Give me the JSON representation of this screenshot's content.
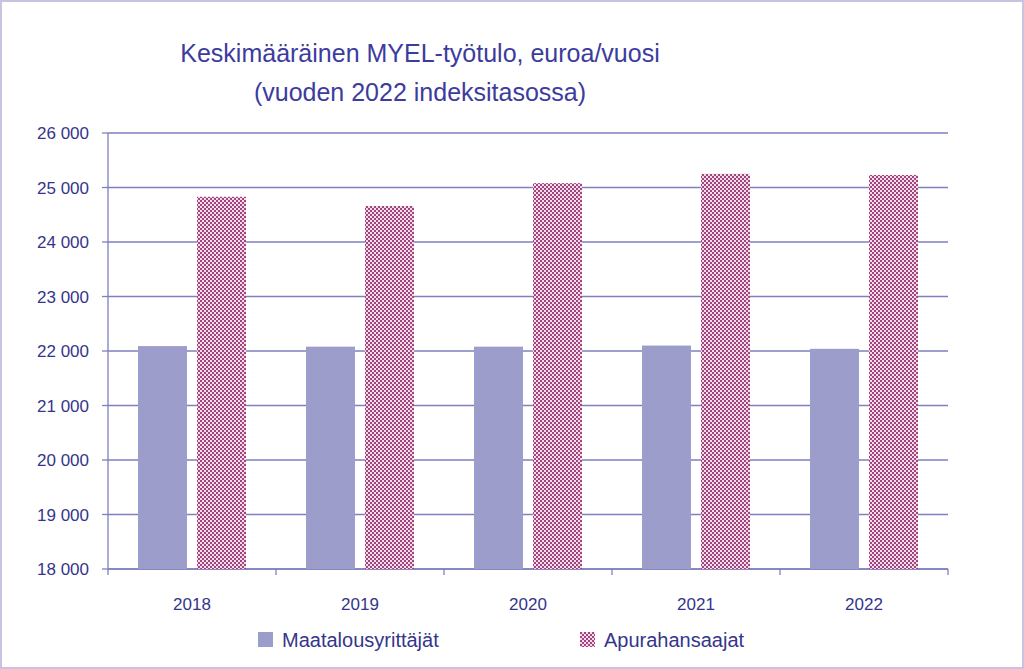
{
  "chart_data": {
    "type": "bar",
    "title": "Keskimääräinen MYEL-työtulo, euroa/vuosi",
    "subtitle": "(vuoden 2022 indeksitasossa)",
    "categories": [
      "2018",
      "2019",
      "2020",
      "2021",
      "2022"
    ],
    "series": [
      {
        "name": "Maatalousyrittäjät",
        "color": "#9d9dcb",
        "values": [
          22090,
          22080,
          22080,
          22100,
          22040
        ]
      },
      {
        "name": "Apurahansaajat",
        "color": "#a0457e",
        "values": [
          24830,
          24660,
          25080,
          25250,
          25230
        ]
      }
    ],
    "ylim": [
      18000,
      26000
    ],
    "yticks": [
      {
        "value": 18000,
        "label": "18 000"
      },
      {
        "value": 19000,
        "label": "19 000"
      },
      {
        "value": 20000,
        "label": "20 000"
      },
      {
        "value": 21000,
        "label": "21 000"
      },
      {
        "value": 22000,
        "label": "22 000"
      },
      {
        "value": 23000,
        "label": "23 000"
      },
      {
        "value": 24000,
        "label": "24 000"
      },
      {
        "value": 25000,
        "label": "25 000"
      },
      {
        "value": 26000,
        "label": "26 000"
      }
    ],
    "grid": true,
    "legend": "bottom"
  }
}
